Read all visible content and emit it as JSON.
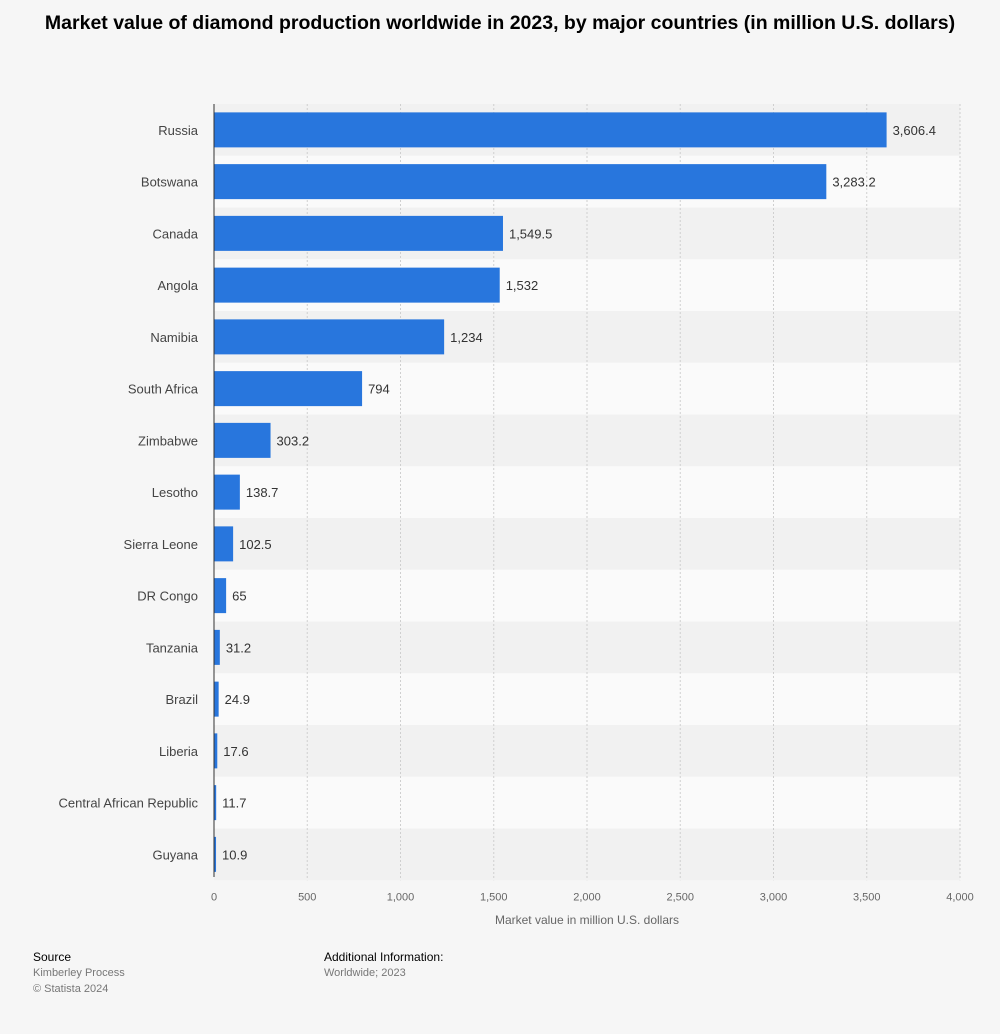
{
  "title": "Market value of diamond production worldwide in 2023, by major countries (in million U.S. dollars)",
  "chart_data": {
    "type": "bar",
    "orientation": "horizontal",
    "title": "Market value of diamond production worldwide in 2023, by major countries (in million U.S. dollars)",
    "xlabel": "Market value in million U.S. dollars",
    "ylabel": "",
    "xlim": [
      0,
      4000
    ],
    "xticks": [
      0,
      500,
      1000,
      1500,
      2000,
      2500,
      3000,
      3500,
      4000
    ],
    "xtick_labels": [
      "0",
      "500",
      "1,000",
      "1,500",
      "2,000",
      "2,500",
      "3,000",
      "3,500",
      "4,000"
    ],
    "categories": [
      "Russia",
      "Botswana",
      "Canada",
      "Angola",
      "Namibia",
      "South Africa",
      "Zimbabwe",
      "Lesotho",
      "Sierra Leone",
      "DR Congo",
      "Tanzania",
      "Brazil",
      "Liberia",
      "Central African Republic",
      "Guyana"
    ],
    "values": [
      3606.4,
      3283.2,
      1549.5,
      1532,
      1234,
      794,
      303.2,
      138.7,
      102.5,
      65,
      31.2,
      24.9,
      17.6,
      11.7,
      10.9
    ],
    "value_labels": [
      "3,606.4",
      "3,283.2",
      "1,549.5",
      "1,532",
      "1,234",
      "794",
      "303.2",
      "138.7",
      "102.5",
      "65",
      "31.2",
      "24.9",
      "17.6",
      "11.7",
      "10.9"
    ],
    "grid": true,
    "legend": "none",
    "bar_color": "#2876dd"
  },
  "footer": {
    "source_heading": "Source",
    "source_name": "Kimberley Process",
    "copyright": "© Statista 2024",
    "additional_heading": "Additional Information:",
    "additional_text": "Worldwide; 2023"
  }
}
